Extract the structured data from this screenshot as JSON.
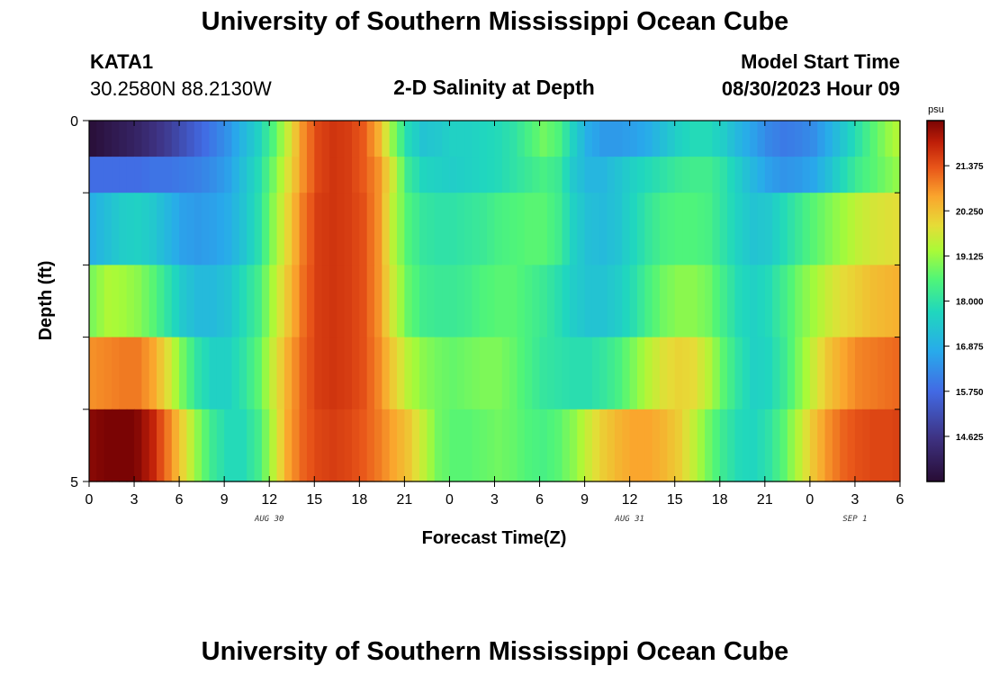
{
  "header": {
    "title": "University of Southern Mississippi Ocean Cube",
    "station": "KATA1",
    "coords": "30.2580N  88.2130W",
    "subtitle": "2-D Salinity at Depth",
    "model_label": "Model Start Time",
    "model_time": "08/30/2023 Hour 09"
  },
  "footer": {
    "title": "University of Southern Mississippi Ocean Cube"
  },
  "chart_data": {
    "type": "heatmap",
    "title": "2-D Salinity at Depth",
    "xlabel": "Forecast Time(Z)",
    "ylabel": "Depth (ft)",
    "x_tick_labels": [
      "0",
      "3",
      "6",
      "9",
      "12",
      "15",
      "18",
      "21",
      "0",
      "3",
      "6",
      "9",
      "12",
      "15",
      "18",
      "21",
      "0",
      "3",
      "6"
    ],
    "x_hours": [
      0,
      54
    ],
    "date_labels": [
      {
        "hour": 12,
        "label": "AUG 30"
      },
      {
        "hour": 36,
        "label": "AUG 31"
      },
      {
        "hour": 51,
        "label": "SEP 1"
      }
    ],
    "y_tick_labels": [
      "0",
      "5"
    ],
    "ylim": [
      0,
      5
    ],
    "depth_layers": 5,
    "colorbar": {
      "unit": "psu",
      "min": 13.5,
      "max": 22.5,
      "ticks": [
        "21.375",
        "20.250",
        "19.125",
        "18.000",
        "16.875",
        "15.750",
        "14.625"
      ],
      "tick_values": [
        21.375,
        20.25,
        19.125,
        18.0,
        16.875,
        15.75,
        14.625
      ]
    },
    "salinity_psu": {
      "hours": [
        0,
        1,
        2,
        3,
        4,
        5,
        6,
        7,
        8,
        9,
        10,
        11,
        12,
        13,
        14,
        15,
        16,
        17,
        18,
        19,
        20,
        21,
        22,
        23,
        24,
        25,
        26,
        27,
        28,
        29,
        30,
        31,
        32,
        33,
        34,
        35,
        36,
        37,
        38,
        39,
        40,
        41,
        42,
        43,
        44,
        45,
        46,
        47,
        48,
        49,
        50,
        51,
        52,
        53,
        54
      ],
      "rows": [
        [
          13.6,
          13.8,
          14.0,
          14.2,
          14.5,
          14.8,
          15.2,
          15.6,
          16.0,
          16.4,
          17.0,
          17.6,
          18.5,
          19.6,
          20.8,
          21.5,
          21.7,
          21.6,
          21.3,
          20.5,
          19.0,
          17.8,
          17.3,
          17.4,
          17.6,
          17.6,
          17.7,
          17.8,
          18.0,
          18.4,
          18.8,
          18.5,
          17.6,
          16.8,
          16.5,
          16.5,
          16.6,
          16.8,
          17.2,
          17.6,
          17.8,
          17.8,
          17.5,
          17.0,
          16.6,
          16.2,
          16.0,
          16.1,
          16.3,
          16.8,
          17.4,
          18.0,
          18.6,
          19.1,
          19.5
        ],
        [
          15.8,
          15.8,
          15.8,
          15.8,
          15.9,
          15.9,
          16.0,
          16.1,
          16.3,
          16.6,
          17.2,
          17.8,
          18.8,
          19.8,
          20.8,
          21.5,
          21.7,
          21.6,
          21.3,
          20.8,
          19.6,
          18.2,
          17.7,
          17.6,
          17.5,
          17.6,
          17.7,
          17.8,
          18.0,
          18.2,
          18.4,
          18.2,
          17.4,
          17.0,
          17.0,
          17.3,
          17.6,
          17.8,
          18.0,
          18.2,
          18.3,
          18.3,
          18.0,
          17.5,
          17.0,
          16.6,
          16.4,
          16.5,
          16.7,
          17.2,
          17.8,
          18.3,
          18.6,
          18.9,
          19.2
        ],
        [
          16.9,
          17.2,
          17.5,
          17.6,
          17.4,
          17.0,
          16.6,
          16.5,
          16.6,
          16.8,
          17.3,
          17.9,
          19.0,
          20.0,
          21.0,
          21.6,
          21.7,
          21.6,
          21.4,
          20.8,
          19.4,
          18.5,
          18.1,
          18.0,
          18.0,
          18.1,
          18.2,
          18.4,
          18.5,
          18.6,
          18.6,
          18.3,
          17.6,
          17.2,
          17.1,
          17.3,
          17.7,
          18.1,
          18.4,
          18.5,
          18.5,
          18.4,
          18.0,
          17.6,
          17.3,
          17.4,
          17.8,
          18.2,
          18.6,
          18.9,
          19.2,
          19.5,
          19.7,
          19.8,
          19.9
        ],
        [
          18.9,
          19.3,
          19.2,
          19.0,
          18.6,
          18.0,
          17.4,
          17.1,
          17.1,
          17.3,
          17.8,
          18.3,
          19.3,
          20.2,
          21.1,
          21.6,
          21.7,
          21.6,
          21.4,
          20.8,
          19.6,
          18.7,
          18.3,
          18.2,
          18.2,
          18.3,
          18.5,
          18.6,
          18.6,
          18.4,
          18.2,
          17.9,
          17.5,
          17.3,
          17.3,
          17.5,
          17.9,
          18.4,
          18.8,
          19.0,
          19.0,
          18.8,
          18.3,
          17.8,
          17.6,
          17.8,
          18.3,
          18.8,
          19.2,
          19.6,
          19.9,
          20.1,
          20.3,
          20.4,
          20.5
        ],
        [
          20.8,
          20.9,
          21.0,
          21.0,
          20.6,
          19.8,
          18.8,
          18.0,
          17.6,
          17.6,
          18.0,
          18.6,
          19.6,
          20.5,
          21.2,
          21.6,
          21.7,
          21.6,
          21.4,
          20.9,
          20.1,
          19.4,
          19.0,
          18.8,
          18.7,
          18.8,
          18.9,
          18.9,
          18.7,
          18.4,
          18.1,
          18.0,
          17.9,
          17.9,
          18.1,
          18.4,
          18.9,
          19.4,
          19.8,
          20.0,
          19.9,
          19.4,
          18.6,
          18.0,
          17.6,
          17.7,
          18.2,
          18.9,
          19.6,
          20.2,
          20.6,
          20.9,
          21.0,
          21.1,
          21.2
        ],
        [
          22.4,
          22.5,
          22.6,
          22.4,
          21.9,
          21.0,
          20.0,
          19.0,
          18.2,
          17.8,
          17.8,
          18.3,
          19.4,
          20.6,
          21.2,
          21.5,
          21.6,
          21.5,
          21.3,
          21.0,
          20.6,
          20.2,
          19.5,
          18.8,
          18.6,
          18.6,
          18.7,
          18.8,
          18.7,
          18.5,
          18.4,
          18.6,
          19.0,
          19.6,
          20.1,
          20.4,
          20.6,
          20.6,
          20.4,
          20.1,
          19.5,
          18.8,
          18.2,
          17.8,
          17.7,
          18.0,
          18.6,
          19.4,
          20.2,
          20.8,
          21.2,
          21.4,
          21.5,
          21.5,
          21.6
        ]
      ]
    }
  }
}
